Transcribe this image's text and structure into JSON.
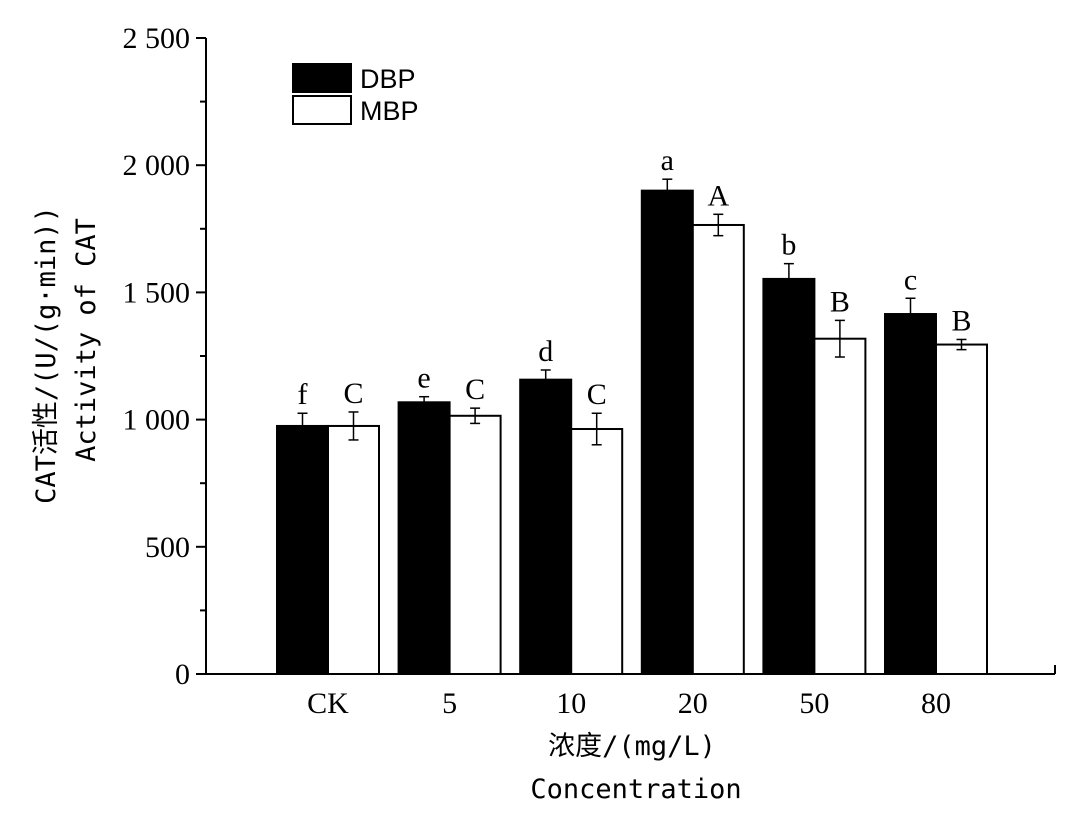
{
  "chart_data": {
    "type": "bar",
    "categories": [
      "CK",
      "5",
      "10",
      "20",
      "50",
      "80"
    ],
    "series": [
      {
        "name": "DBP",
        "color": "#000000",
        "values": [
          975,
          1068,
          1157,
          1900,
          1553,
          1415
        ],
        "errors": [
          50,
          22,
          38,
          45,
          60,
          62
        ],
        "labels": [
          "f",
          "e",
          "d",
          "a",
          "b",
          "c"
        ]
      },
      {
        "name": "MBP",
        "color": "#ffffff",
        "values": [
          975,
          1015,
          963,
          1765,
          1318,
          1295
        ],
        "errors": [
          55,
          30,
          62,
          42,
          72,
          20
        ],
        "labels": [
          "C",
          "C",
          "C",
          "A",
          "B",
          "B"
        ]
      }
    ],
    "ylabel": "CAT活性/(U/(g·min))",
    "ylabel2": "Activity of CAT",
    "xlabel": "浓度/(mg/L)",
    "xlabel2": "Concentration",
    "ylim": [
      0,
      2500
    ],
    "yticks": [
      "0",
      "500",
      "1 000",
      "1 500",
      "2 000",
      "2 500"
    ],
    "legend_position": "top-left",
    "grid": false
  }
}
